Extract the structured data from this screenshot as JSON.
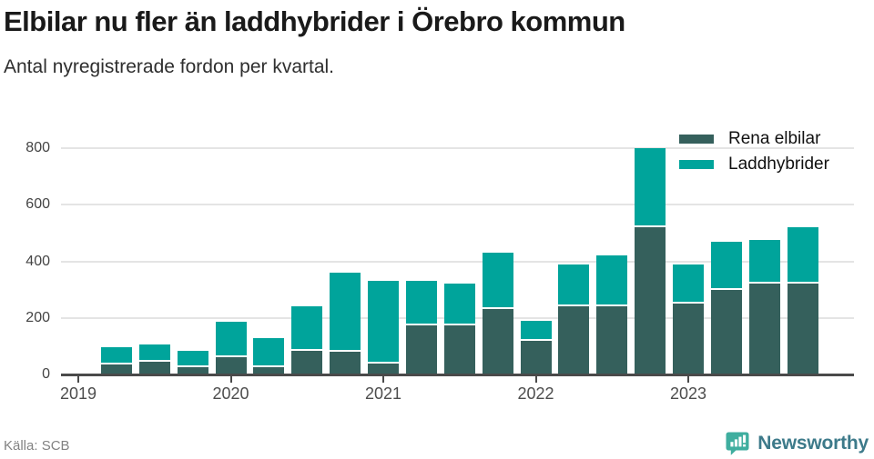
{
  "header": {
    "title": "Elbilar nu fler än laddhybrider i Örebro kommun",
    "subtitle": "Antal nyregistrerade fordon per kvartal."
  },
  "footer": {
    "source": "Källa: SCB",
    "brand": "Newsworthy"
  },
  "colors": {
    "elbilar": "#35605c",
    "laddhybrider": "#00a49b",
    "axis": "#4a4a4a",
    "grid": "#e4e4e4",
    "brand_icon": "#3fae9f",
    "brand_text": "#3d7a8a"
  },
  "chart_data": {
    "type": "bar",
    "stacked": true,
    "title": "Elbilar nu fler än laddhybrider i Örebro kommun",
    "subtitle": "Antal nyregistrerade fordon per kvartal.",
    "categories": [
      "2019 K2",
      "2019 K3",
      "2019 K4",
      "2020 K1",
      "2020 K2",
      "2020 K3",
      "2020 K4",
      "2021 K1",
      "2021 K2",
      "2021 K3",
      "2021 K4",
      "2022 K1",
      "2022 K2",
      "2022 K3",
      "2022 K4",
      "2023 K1",
      "2023 K2",
      "2023 K3",
      "2023 K4"
    ],
    "first_quarter_offset": 1,
    "series": [
      {
        "name": "Rena elbilar",
        "color": "#35605c",
        "values": [
          35,
          45,
          25,
          60,
          25,
          85,
          80,
          40,
          175,
          175,
          230,
          120,
          240,
          240,
          520,
          250,
          300,
          320,
          320
        ]
      },
      {
        "name": "Laddhybrider",
        "color": "#00a49b",
        "values": [
          60,
          60,
          60,
          125,
          105,
          155,
          280,
          290,
          155,
          145,
          200,
          70,
          150,
          180,
          280,
          140,
          170,
          155,
          200
        ]
      }
    ],
    "totals": [
      95,
      105,
      85,
      185,
      130,
      240,
      360,
      330,
      330,
      320,
      430,
      190,
      390,
      420,
      800,
      390,
      470,
      475,
      520
    ],
    "x_tick_labels": [
      "2019",
      "2020",
      "2021",
      "2022",
      "2023"
    ],
    "yticks": [
      0,
      200,
      400,
      600,
      800
    ],
    "ytick_labels": [
      "0",
      "200",
      "400",
      "600",
      "800"
    ],
    "ylim": [
      0,
      800
    ],
    "grid": true,
    "legend_position": "top-right"
  }
}
